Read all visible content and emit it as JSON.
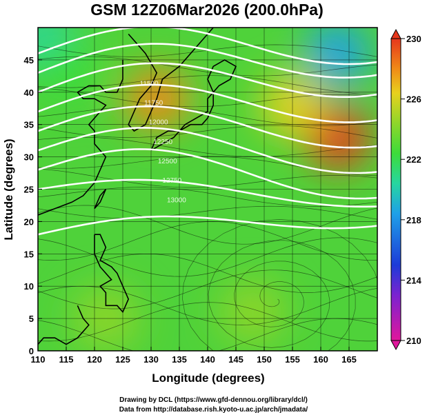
{
  "chart_data": {
    "type": "heatmap",
    "title": "GSM 12Z06Mar2026 (200.0hPa)",
    "xlabel": "Longitude (degrees)",
    "ylabel": "Latitude  (degrees)",
    "xlim": [
      110,
      170
    ],
    "ylim": [
      0,
      50
    ],
    "xticks": [
      110,
      115,
      120,
      125,
      130,
      135,
      140,
      145,
      150,
      155,
      160,
      165
    ],
    "yticks": [
      0,
      5,
      10,
      15,
      20,
      25,
      30,
      35,
      40,
      45
    ],
    "colorbar": {
      "ticks": [
        230,
        226,
        222,
        218,
        214,
        210
      ],
      "range": [
        210,
        230
      ],
      "colors": [
        "#e0179c",
        "#7b23d0",
        "#1d3bd8",
        "#1fa0e8",
        "#27d6a0",
        "#3ddc3a",
        "#8fd62a",
        "#e8d11e",
        "#f08a18",
        "#e6371c"
      ]
    },
    "temperature_hotspots": [
      {
        "lon": 131,
        "lat": 39,
        "value": 228
      },
      {
        "lon": 163,
        "lat": 33,
        "value": 229
      },
      {
        "lon": 155,
        "lat": 38,
        "value": 226
      },
      {
        "lon": 163,
        "lat": 46,
        "value": 216
      },
      {
        "lon": 111,
        "lat": 48,
        "value": 218
      },
      {
        "lon": 115,
        "lat": 43,
        "value": 220
      },
      {
        "lon": 122,
        "lat": 5,
        "value": 223
      },
      {
        "lon": 148,
        "lat": 6,
        "value": 224
      }
    ],
    "contour_lines": [
      {
        "lat_at_110": 46,
        "lat_at_170": 48
      },
      {
        "lat_at_110": 43,
        "lat_at_170": 46
      },
      {
        "lat_at_110": 40,
        "lat_at_170": 43
      },
      {
        "lat_at_110": 37,
        "lat_at_170": 39
      },
      {
        "lat_at_110": 34,
        "lat_at_170": 35
      },
      {
        "lat_at_110": 31,
        "lat_at_170": 31
      },
      {
        "lat_at_110": 28,
        "lat_at_170": 27
      },
      {
        "lat_at_110": 25,
        "lat_at_170": 24
      },
      {
        "lat_at_110": 18,
        "lat_at_170": 21
      }
    ],
    "contour_labels": [
      "11500",
      "11750",
      "12000",
      "12250",
      "12500",
      "12750",
      "13000"
    ]
  },
  "credits": {
    "line1": "Drawing by DCL (https://www.gfd-dennou.org/library/dcl/)",
    "line2": "Data from http://database.rish.kyoto-u.ac.jp/arch/jmadata/"
  }
}
